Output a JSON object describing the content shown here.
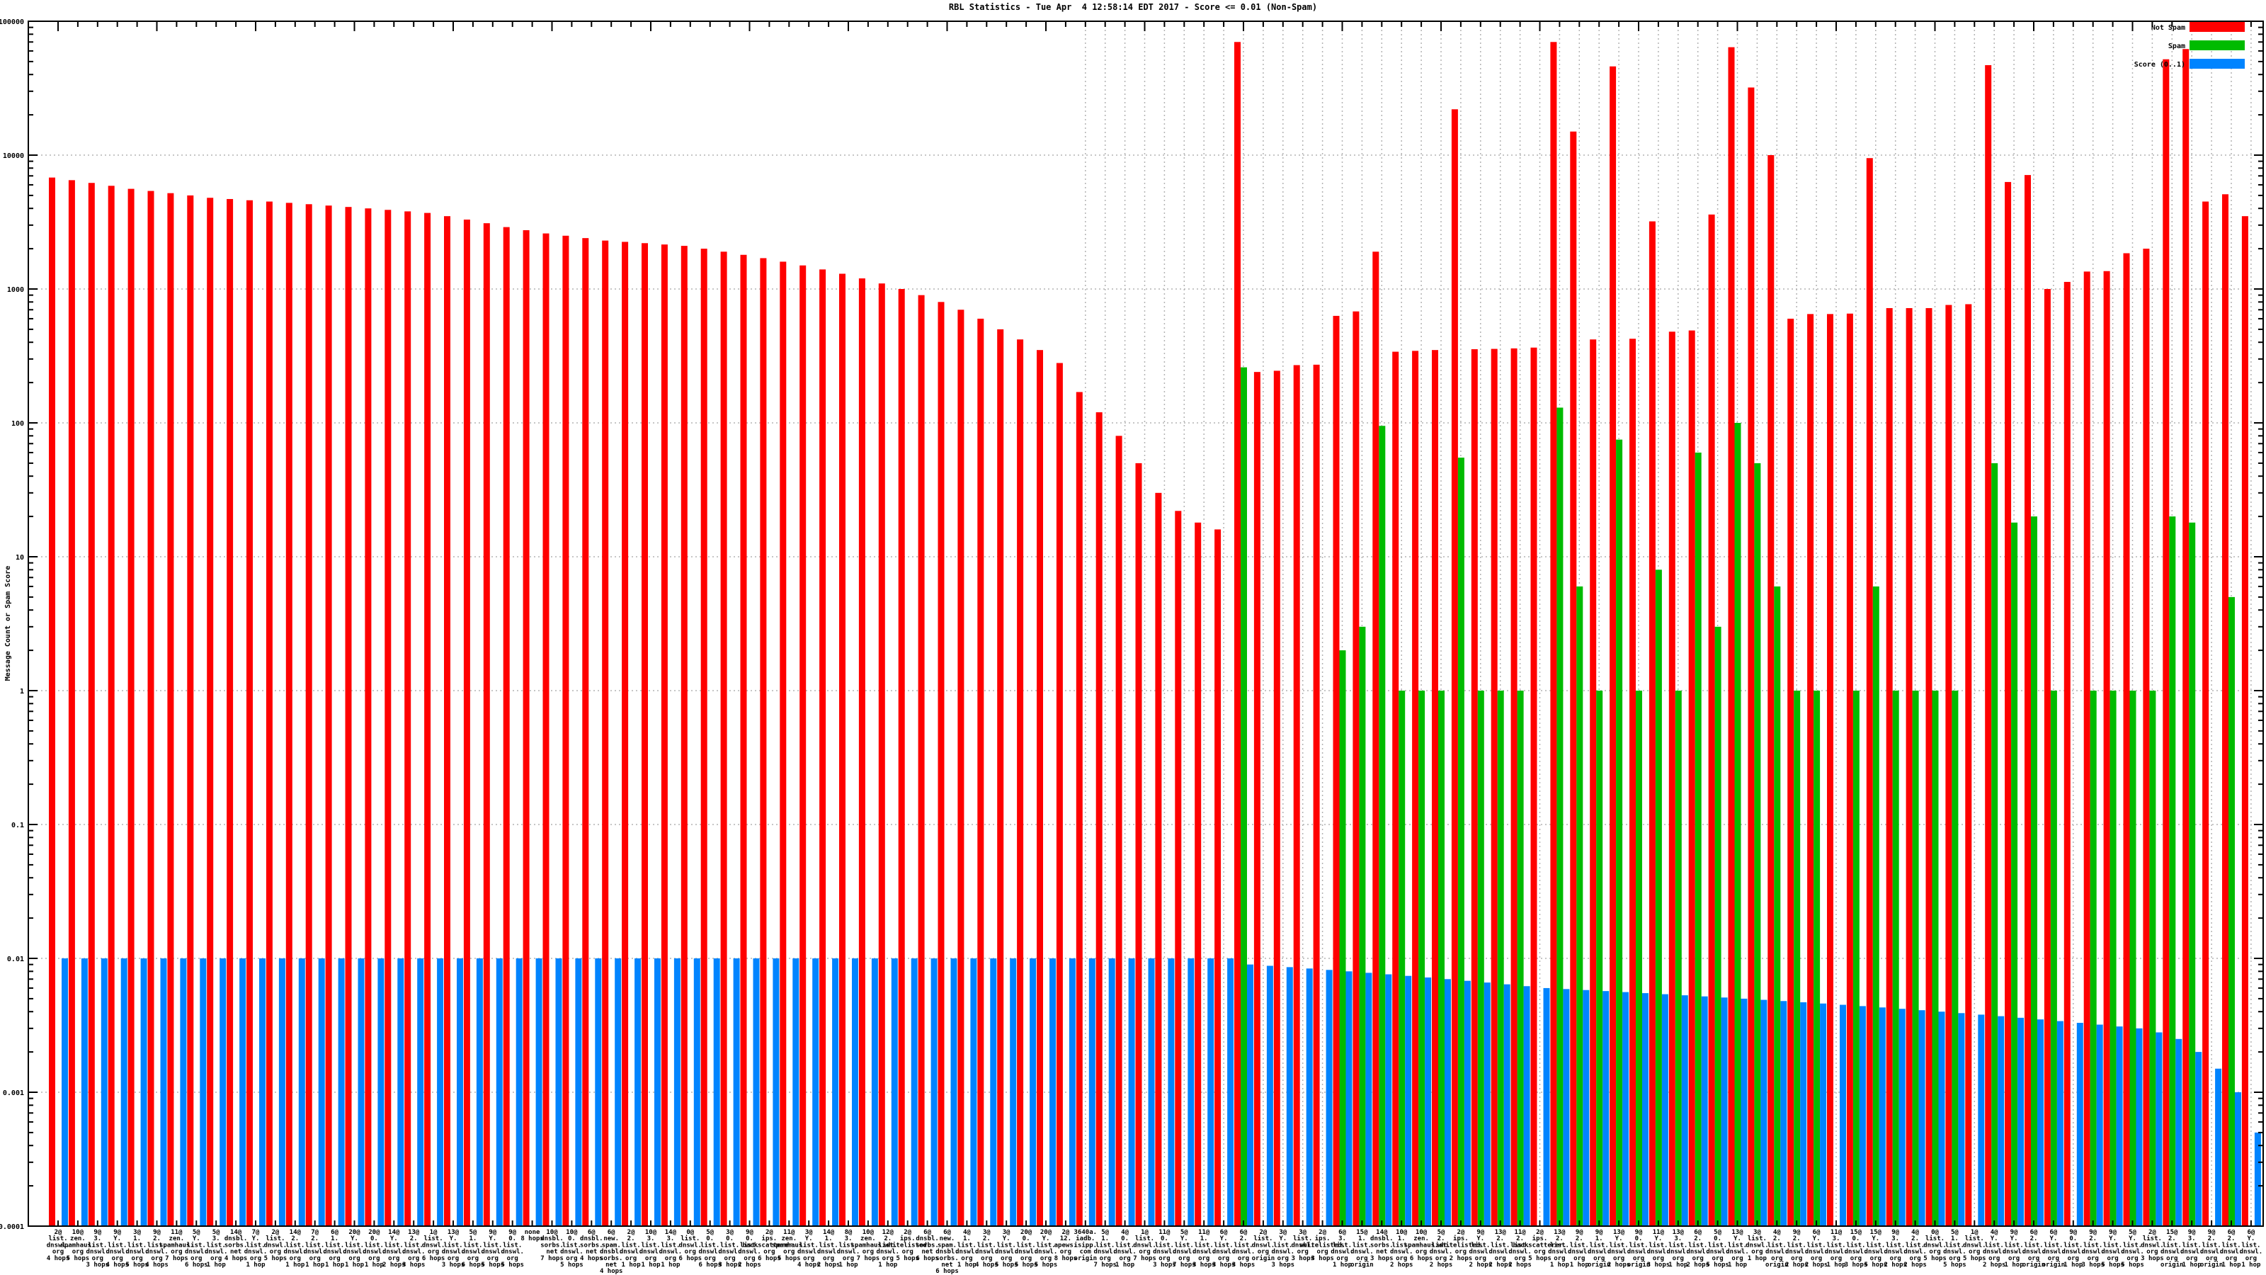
{
  "title": "RBL Statistics - Tue Apr  4 12:58:14 EDT 2017 - Score <= 0.01 (Non-Spam)",
  "ylabel": "Message Count or Spam Score",
  "legend": [
    {
      "label": "Not Spam",
      "color": "#ff0000"
    },
    {
      "label": "Spam",
      "color": "#00bb00"
    },
    {
      "label": "Score (0..1)",
      "color": "#0084ff"
    }
  ],
  "colors": {
    "grid": "#b3b3b3",
    "axis": "#000000",
    "background": "#ffffff"
  },
  "y_ticks": [
    "100000",
    "10000",
    "1000",
    "100",
    "10",
    "1",
    "0.1",
    "0.01",
    "0.001",
    "0.0001"
  ],
  "chart_data": {
    "type": "bar",
    "y_scale": "log",
    "ylim": [
      0.0001,
      100000
    ],
    "grid": "dotted",
    "legend_position": "top-right",
    "categories": [
      "2@|list.|dnswl.|org|4 hops",
      "10@|zen.|spamhaus.|org|5 hops",
      "9@|3.|list.|dnswl.|org|3 hops",
      "9@|Y.|list.|dnswl.|org|4 hops",
      "3@|1.|list.|dnswl.|org|5 hops",
      "9@|2.|list.|dnswl.|org|4 hops",
      "11@|zen.|spamhaus.|org|7 hops",
      "5@|Y.|list.|dnswl.|org|6 hops",
      "5@|3.|list.|dnswl.|org|1 hop",
      "14@|dnsbl.|sorbs.|net|4 hops",
      "7@|Y.|list.|dnswl.|org|1 hop",
      "2@|list.|dnswl.|org|5 hops",
      "14@|2.|list.|dnswl.|org|1 hop",
      "7@|2.|list.|dnswl.|org|1 hop",
      "6@|1.|list.|dnswl.|org|1 hop",
      "20@|Y.|list.|dnswl.|org|1 hop",
      "20@|0.|list.|dnswl.|org|1 hop",
      "14@|Y.|list.|dnswl.|org|2 hops",
      "13@|2.|list.|dnswl.|org|3 hops",
      "1@|list.|dnswl.|org|6 hops",
      "13@|Y.|list.|dnswl.|org|3 hops",
      "5@|1.|list.|dnswl.|org|6 hops",
      "9@|Y.|list.|dnswl.|org|5 hops",
      "9@|0.|list.|dnswl.|org|5 hops",
      "none|8 hops",
      "10@|dnsbl.|sorbs.|net|7 hops",
      "10@|0.|list.|dnswl.|org|5 hops",
      "6@|dnsbl.|sorbs.|net|4 hops",
      "6@|new.|spam.|dnsbl.|sorbs.|net|4 hops",
      "2@|2.|list.|dnswl.|org|1 hop",
      "10@|3.|list.|dnswl.|org|1 hop",
      "14@|3.|list.|dnswl.|org|1 hop",
      "0@|list.|dnswl.|org|6 hops",
      "5@|0.|list.|dnswl.|org|6 hops",
      "3@|0.|list.|dnswl.|org|3 hops",
      "9@|0.|list.|dnswl.|org|2 hops",
      "2@|ips.|backscatterer.|org|6 hops",
      "11@|zen.|spamhaus.|org|5 hops",
      "3@|Y.|list.|dnswl.|org|4 hops",
      "14@|1.|list.|dnswl.|org|2 hops",
      "8@|3.|list.|dnswl.|org|1 hop",
      "10@|zen.|spamhaus.|org|7 hops",
      "12@|2.|list.|dnswl.|org|1 hop",
      "2@|ips.|whitelisted.|org|5 hops",
      "6@|dnsbl.|sorbs.|net|6 hops",
      "6@|new.|spam.|dnsbl.|sorbs.|net|6 hops",
      "4@|1.|list.|dnswl.|org|1 hop",
      "3@|2.|list.|dnswl.|org|4 hops",
      "3@|Y.|list.|dnswl.|org|5 hops",
      "20@|0.|list.|dnswl.|org|5 hops",
      "20@|Y.|list.|dnswl.|org|5 hops",
      "2@|12.|apews.|org|8 hops",
      "3640a.|iadb.|isipp.|com|origin",
      "5@|1.|list.|dnswl.|org|7 hops",
      "4@|0.|list.|dnswl.|org|1 hop",
      "1@|list.|dnswl.|org|7 hops",
      "11@|0.|list.|dnswl.|org|3 hops",
      "5@|Y.|list.|dnswl.|org|7 hops",
      "11@|1.|list.|dnswl.|org|3 hops",
      "6@|Y.|list.|dnswl.|org|3 hops",
      "6@|2.|list.|dnswl.|org|3 hops",
      "2@|list.|dnswl.|org|origin",
      "3@|Y.|list.|dnswl.|org|3 hops",
      "3@|list.|dnswl.|org|3 hops",
      "2@|ips.|whitelisted.|org|3 hops",
      "6@|3.|list.|dnswl.|org|1 hop",
      "15@|1.|list.|dnswl.|org|origin",
      "14@|dnsbl.|sorbs.|net|3 hops",
      "10@|1.|list.|dnswl.|org|2 hops",
      "10@|zen.|spamhaus.|org|6 hops",
      "5@|2.|list.|dnswl.|org|2 hops",
      "2@|ips.|whitelisted.|org|2 hops",
      "9@|Y.|list.|dnswl.|org|2 hops",
      "13@|2.|list.|dnswl.|org|2 hops",
      "11@|2.|list.|dnswl.|org|2 hops",
      "2@|ips.|backscatterer.|org|5 hops",
      "13@|2.|list.|dnswl.|org|1 hop",
      "9@|2.|list.|dnswl.|org|1 hop",
      "9@|1.|list.|dnswl.|org|origin",
      "13@|Y.|list.|dnswl.|org|2 hops",
      "9@|0.|list.|dnswl.|org|origin",
      "11@|Y.|list.|dnswl.|org|3 hops",
      "13@|3.|list.|dnswl.|org|1 hop",
      "6@|2.|list.|dnswl.|org|2 hops",
      "5@|0.|list.|dnswl.|org|5 hops",
      "13@|Y.|list.|dnswl.|org|1 hop",
      "3@|list.|dnswl.|org|1 hop",
      "4@|2.|list.|dnswl.|org|origin",
      "9@|2.|list.|dnswl.|org|2 hops",
      "6@|Y.|list.|dnswl.|org|2 hops",
      "11@|3.|list.|dnswl.|org|1 hop",
      "15@|0.|list.|dnswl.|org|3 hops",
      "15@|Y.|list.|dnswl.|org|5 hops",
      "9@|3.|list.|dnswl.|org|2 hops",
      "4@|2.|list.|dnswl.|org|2 hops",
      "0@|list.|dnswl.|org|5 hops",
      "5@|1.|list.|dnswl.|org|5 hops",
      "1@|list.|dnswl.|org|5 hops",
      "4@|Y.|list.|dnswl.|org|2 hops",
      "9@|Y.|list.|dnswl.|org|1 hop",
      "6@|2.|list.|dnswl.|org|origin",
      "6@|Y.|list.|dnswl.|org|origin",
      "9@|0.|list.|dnswl.|org|1 hop",
      "9@|2.|list.|dnswl.|org|3 hops",
      "9@|Y.|list.|dnswl.|org|5 hops",
      "5@|Y.|list.|dnswl.|org|5 hops",
      "2@|list.|dnswl.|org|3 hops",
      "15@|2.|list.|dnswl.|org|origin",
      "9@|3.|list.|dnswl.|org|1 hop",
      "9@|2.|list.|dnswl.|org|origin",
      "6@|2.|list.|dnswl.|org|1 hop",
      "6@|Y.|list.|dnswl.|org|1 hop"
    ],
    "series": [
      {
        "name": "Not Spam",
        "color": "#ff0000",
        "values": [
          6800,
          6500,
          6200,
          5900,
          5600,
          5400,
          5200,
          5000,
          4800,
          4700,
          4600,
          4500,
          4400,
          4300,
          4200,
          4100,
          4000,
          3900,
          3800,
          3700,
          3500,
          3300,
          3100,
          2900,
          2750,
          2600,
          2500,
          2400,
          2300,
          2250,
          2200,
          2150,
          2100,
          2000,
          1900,
          1800,
          1700,
          1600,
          1500,
          1400,
          1300,
          1200,
          1100,
          1000,
          900,
          800,
          700,
          600,
          500,
          420,
          350,
          280,
          170,
          120,
          80,
          50,
          30,
          22,
          18,
          16,
          70000,
          240,
          245,
          270,
          272,
          630,
          680,
          1900,
          340,
          345,
          350,
          22000,
          355,
          357,
          360,
          365,
          70000,
          15000,
          420,
          46000,
          425,
          3200,
          480,
          490,
          3600,
          64000,
          32000,
          10000,
          600,
          650,
          650,
          655,
          9500,
          720,
          720,
          720,
          760,
          770,
          47000,
          6300,
          7100,
          1000,
          1130,
          1350,
          1360,
          1850,
          2000,
          52000,
          62000,
          4500,
          5100,
          3500
        ]
      },
      {
        "name": "Spam",
        "color": "#00bb00",
        "values": [
          0,
          0,
          0,
          0,
          0,
          0,
          0,
          0,
          0,
          0,
          0,
          0,
          0,
          0,
          0,
          0,
          0,
          0,
          0,
          0,
          0,
          0,
          0,
          0,
          0,
          0,
          0,
          0,
          0,
          0,
          0,
          0,
          0,
          0,
          0,
          0,
          0,
          0,
          0,
          0,
          0,
          0,
          0,
          0,
          0,
          0,
          0,
          0,
          0,
          0,
          0,
          0,
          0,
          0,
          0,
          0,
          0,
          0,
          0,
          0,
          260,
          0,
          0,
          0,
          0,
          2,
          3,
          95,
          1,
          1,
          1,
          55,
          1,
          1,
          1,
          0,
          130,
          6,
          1,
          75,
          1,
          8,
          1,
          60,
          3,
          100,
          50,
          6,
          1,
          1,
          0,
          1,
          6,
          1,
          1,
          1,
          1,
          0,
          50,
          18,
          20,
          1,
          0,
          1,
          1,
          1,
          1,
          20,
          18,
          0,
          5,
          0
        ]
      },
      {
        "name": "Score (0..1)",
        "color": "#0084ff",
        "values": [
          0.01,
          0.01,
          0.01,
          0.01,
          0.01,
          0.01,
          0.01,
          0.01,
          0.01,
          0.01,
          0.01,
          0.01,
          0.01,
          0.01,
          0.01,
          0.01,
          0.01,
          0.01,
          0.01,
          0.01,
          0.01,
          0.01,
          0.01,
          0.01,
          0.01,
          0.01,
          0.01,
          0.01,
          0.01,
          0.01,
          0.01,
          0.01,
          0.01,
          0.01,
          0.01,
          0.01,
          0.01,
          0.01,
          0.01,
          0.01,
          0.01,
          0.01,
          0.01,
          0.01,
          0.01,
          0.01,
          0.01,
          0.01,
          0.01,
          0.01,
          0.01,
          0.01,
          0.01,
          0.01,
          0.01,
          0.01,
          0.01,
          0.01,
          0.01,
          0.01,
          0.009,
          0.0088,
          0.0086,
          0.0084,
          0.0082,
          0.008,
          0.0078,
          0.0076,
          0.0074,
          0.0072,
          0.007,
          0.0068,
          0.0066,
          0.0064,
          0.0062,
          0.006,
          0.0059,
          0.0058,
          0.0057,
          0.0056,
          0.0055,
          0.0054,
          0.0053,
          0.0052,
          0.0051,
          0.005,
          0.0049,
          0.0048,
          0.0047,
          0.0046,
          0.0045,
          0.0044,
          0.0043,
          0.0042,
          0.0041,
          0.004,
          0.0039,
          0.0038,
          0.0037,
          0.0036,
          0.0035,
          0.0034,
          0.0033,
          0.0032,
          0.0031,
          0.003,
          0.0028,
          0.0025,
          0.002,
          0.0015,
          0.001,
          0.0005
        ]
      }
    ]
  }
}
